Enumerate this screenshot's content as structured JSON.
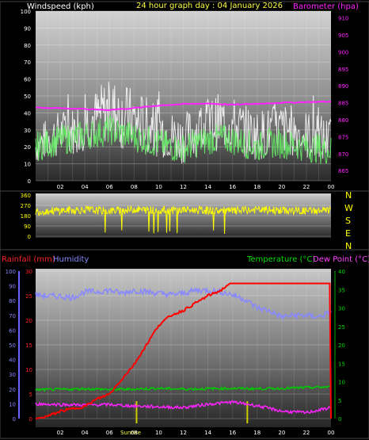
{
  "header": {
    "wind_label": "Windspeed (kph)",
    "title": "24 hour graph day : 04 January 2026",
    "barometer_label": "Barometer (hpa)"
  },
  "lower_header": {
    "rain_label": "Rainfall (mm)",
    "humidity_label": "Humidity",
    "temp_label": "Temperature (°C)",
    "dew_label": "Dew Point (°C)"
  },
  "compass": [
    "N",
    "W",
    "S",
    "E",
    "N"
  ],
  "sun": {
    "sunrise_label": "Sunrise",
    "sunset_label": ""
  },
  "colors": {
    "wind_gust": "#ffffff",
    "wind_avg": "#66ee66",
    "barometer": "#ff22ff",
    "direction": "#ffff00",
    "rain": "#ff0000",
    "humidity": "#8888ff",
    "temperature": "#00cc00",
    "dew_point": "#ff22ff",
    "sun_marker": "#cccc00"
  },
  "chart_data": [
    {
      "type": "line",
      "name": "wind-barometer",
      "x_tick_labels": [
        "02",
        "04",
        "06",
        "08",
        "10",
        "12",
        "14",
        "16",
        "18",
        "20",
        "22",
        "00"
      ],
      "x_hours_range": [
        0,
        24
      ],
      "left_axis": {
        "ticks": [
          0,
          10,
          20,
          30,
          40,
          50,
          60,
          70,
          80,
          90,
          100
        ],
        "ylim": [
          0,
          100
        ]
      },
      "right_axis": {
        "ticks": [
          865,
          870,
          875,
          880,
          885,
          890,
          895,
          900,
          905,
          910
        ],
        "ylim": [
          862,
          912
        ]
      },
      "series": [
        {
          "key": "gust",
          "axis": "left",
          "x": [
            0,
            1,
            2,
            3,
            4,
            5,
            6,
            7,
            8,
            9,
            10,
            11,
            12,
            13,
            14,
            15,
            16,
            17,
            18,
            19,
            20,
            21,
            22,
            23,
            24
          ],
          "y": [
            30,
            38,
            42,
            44,
            52,
            55,
            62,
            58,
            55,
            50,
            48,
            42,
            40,
            45,
            50,
            52,
            50,
            45,
            42,
            44,
            46,
            45,
            42,
            40,
            38
          ],
          "y_min": [
            10,
            12,
            14,
            15,
            18,
            20,
            22,
            18,
            16,
            15,
            14,
            12,
            10,
            14,
            16,
            18,
            16,
            14,
            12,
            14,
            15,
            14,
            12,
            10,
            10
          ]
        },
        {
          "key": "avg",
          "axis": "left",
          "x": [
            0,
            1,
            2,
            3,
            4,
            5,
            6,
            7,
            8,
            9,
            10,
            11,
            12,
            13,
            14,
            15,
            16,
            17,
            18,
            19,
            20,
            21,
            22,
            23,
            24
          ],
          "y": [
            20,
            22,
            24,
            25,
            27,
            28,
            30,
            28,
            26,
            24,
            22,
            20,
            19,
            22,
            24,
            25,
            24,
            22,
            20,
            22,
            22,
            21,
            20,
            19,
            18
          ]
        },
        {
          "key": "barometer",
          "axis": "right",
          "x": [
            0,
            2,
            4,
            6,
            8,
            10,
            12,
            14,
            16,
            18,
            20,
            22,
            24
          ],
          "y": [
            883.6,
            883.4,
            883.1,
            882.9,
            883.4,
            884.2,
            884.6,
            884.8,
            884.4,
            884.7,
            885.0,
            885.2,
            885.3
          ]
        }
      ]
    },
    {
      "type": "line",
      "name": "wind-direction",
      "x_hours_range": [
        0,
        24
      ],
      "y_ticks": [
        0,
        90,
        180,
        270,
        360
      ],
      "ylim": [
        0,
        360
      ],
      "series": [
        {
          "key": "direction",
          "x": [
            0,
            2,
            4,
            6,
            8,
            10,
            12,
            14,
            16,
            18,
            20,
            22,
            24
          ],
          "y": [
            215,
            225,
            230,
            220,
            235,
            225,
            230,
            225,
            220,
            230,
            225,
            220,
            225
          ]
        }
      ]
    },
    {
      "type": "line",
      "name": "rain-humidity-temperature",
      "x_tick_labels": [
        "02",
        "04",
        "06",
        "08",
        "10",
        "12",
        "14",
        "16",
        "18",
        "20",
        "22",
        "00"
      ],
      "x_hours_range": [
        0,
        24
      ],
      "humidity_axis": {
        "ticks": [
          0,
          10,
          20,
          30,
          40,
          50,
          60,
          70,
          80,
          90,
          100
        ],
        "ylim": [
          0,
          100
        ]
      },
      "rain_axis": {
        "ticks": [
          0,
          5,
          10,
          15,
          20,
          25,
          30
        ],
        "ylim": [
          0,
          30
        ]
      },
      "temp_axis": {
        "ticks": [
          0,
          5,
          10,
          15,
          20,
          25,
          30,
          35,
          40
        ],
        "ylim": [
          0,
          40
        ]
      },
      "sunrise_hour": 8.2,
      "sunset_hour": 17.2,
      "series": [
        {
          "key": "rain",
          "axis": "rain",
          "x": [
            0,
            1,
            2,
            3,
            4,
            5,
            6,
            7,
            8,
            9,
            10,
            11,
            12,
            13,
            14,
            15,
            15.8,
            16.5,
            18,
            20,
            22,
            23.9,
            24
          ],
          "y": [
            0,
            0.5,
            1.5,
            2,
            2.5,
            4,
            5,
            8,
            11,
            15,
            19,
            21,
            22,
            23.5,
            25,
            26,
            27.5,
            27.5,
            27.5,
            27.5,
            27.5,
            27.5,
            0
          ]
        },
        {
          "key": "humidity",
          "axis": "humidity",
          "x": [
            0,
            1,
            2,
            3,
            4,
            5,
            6,
            7,
            8,
            9,
            10,
            11,
            12,
            13,
            14,
            15,
            16,
            17,
            18,
            19,
            20,
            21,
            22,
            23,
            24
          ],
          "y": [
            84,
            83,
            83,
            82,
            86,
            86,
            87,
            85,
            87,
            86,
            85,
            84,
            85,
            87,
            87,
            86,
            84,
            81,
            75,
            73,
            69,
            70,
            70,
            69,
            72
          ]
        },
        {
          "key": "temperature",
          "axis": "temp",
          "x": [
            0,
            2,
            4,
            6,
            8,
            10,
            12,
            14,
            16,
            18,
            20,
            22,
            24
          ],
          "y": [
            7.8,
            7.9,
            8.1,
            7.9,
            8.0,
            8.2,
            8.0,
            8.1,
            8.2,
            8.1,
            8.2,
            8.4,
            8.6
          ]
        },
        {
          "key": "dew_point",
          "axis": "temp",
          "x": [
            0,
            2,
            4,
            6,
            8,
            10,
            12,
            14,
            16,
            18,
            20,
            22,
            24
          ],
          "y": [
            4.0,
            3.8,
            3.7,
            3.8,
            3.4,
            3.2,
            3.0,
            3.9,
            4.5,
            3.5,
            2.0,
            1.6,
            3.0
          ]
        }
      ]
    }
  ]
}
